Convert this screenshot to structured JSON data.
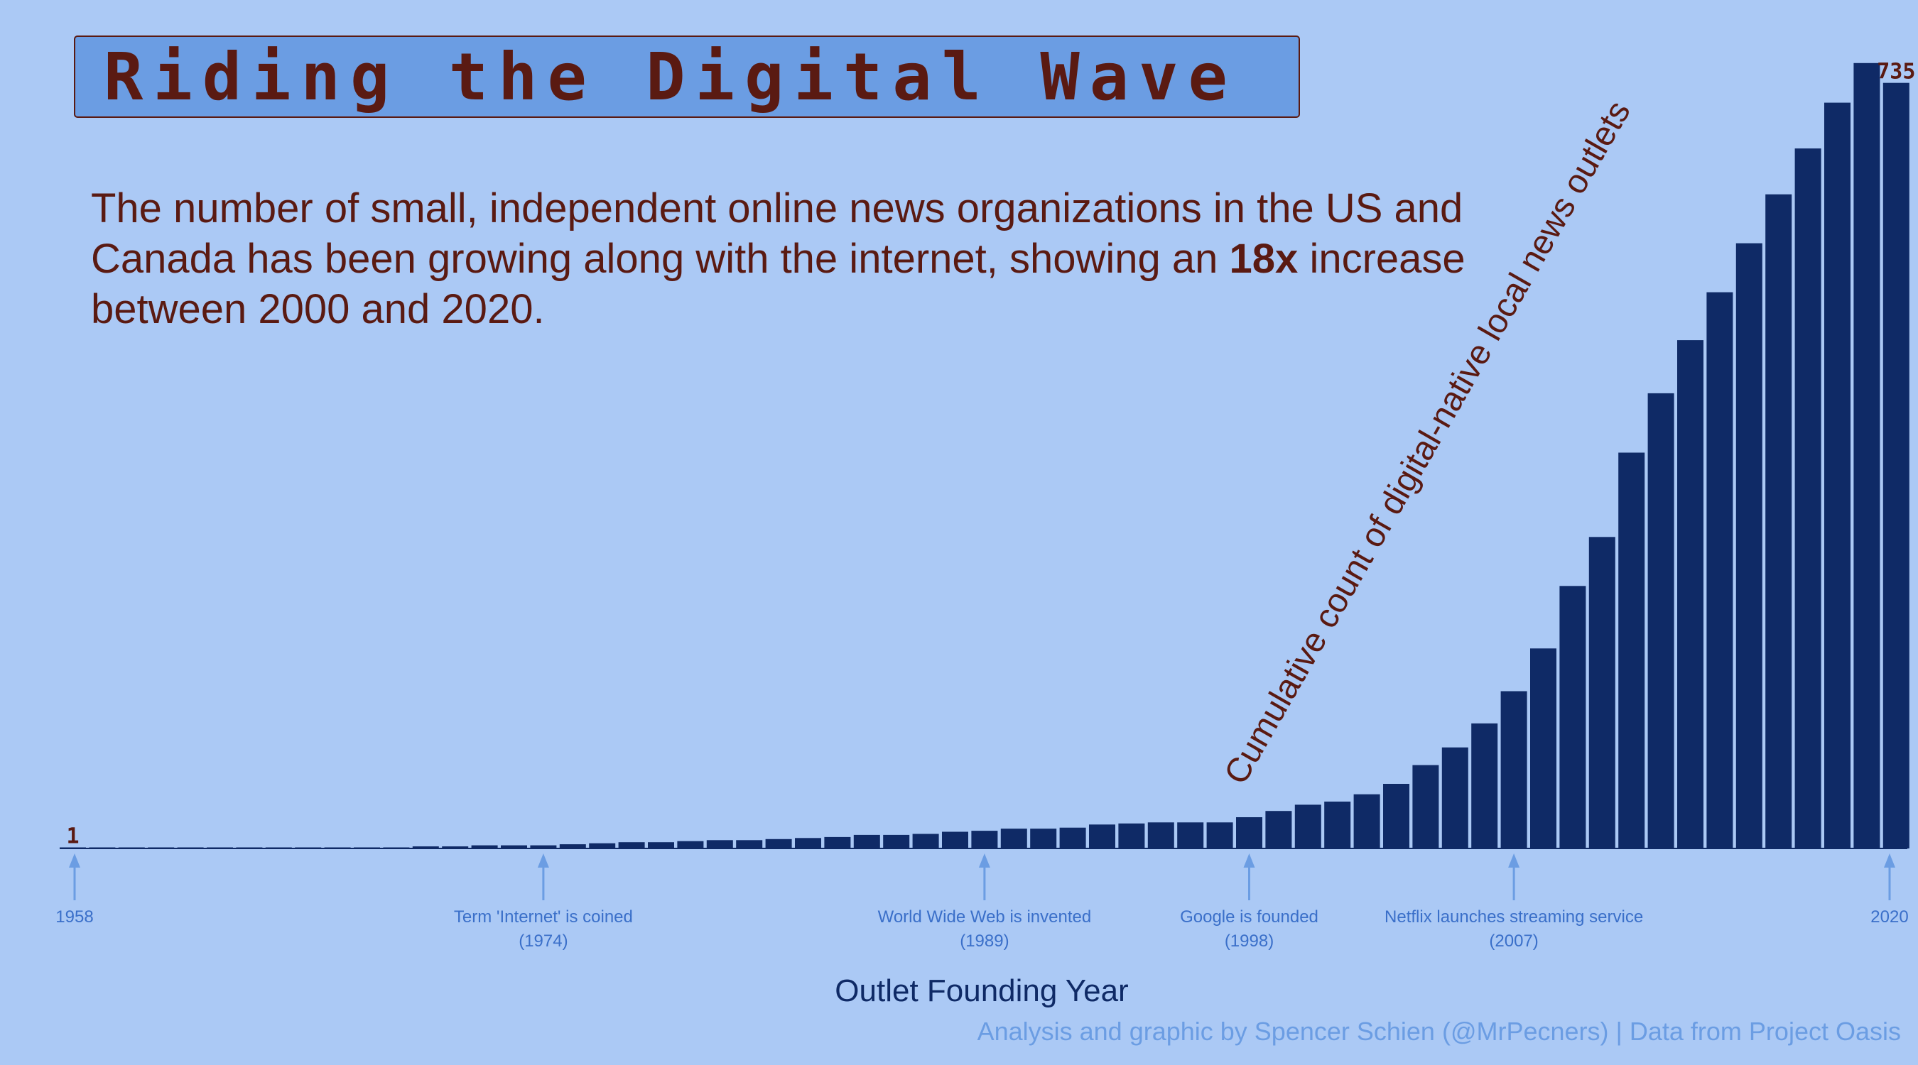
{
  "title": "Riding the Digital Wave",
  "subtitle": {
    "before": "The number of small, independent online news organizations in the US and Canada has been growing along with the internet, showing an ",
    "emphasis": "18x",
    "after": " increase between 2000 and 2020."
  },
  "credit": "Analysis and graphic by Spencer Schien (@MrPecners) | Data from Project Oasis",
  "colors": {
    "background": "#abc9f5",
    "bar": "#0f2a66",
    "accent": "#6b9de3",
    "text": "#5a1a12",
    "annotation": "#3a6fc9"
  },
  "chart_data": {
    "type": "bar",
    "xlabel": "Outlet Founding Year",
    "ylabel": "Cumulative count of digital-native local news outlets",
    "x": [
      1958,
      1959,
      1960,
      1961,
      1962,
      1963,
      1964,
      1965,
      1966,
      1967,
      1968,
      1969,
      1970,
      1971,
      1972,
      1973,
      1974,
      1975,
      1976,
      1977,
      1978,
      1979,
      1980,
      1981,
      1982,
      1983,
      1984,
      1985,
      1986,
      1987,
      1988,
      1989,
      1990,
      1991,
      1992,
      1993,
      1994,
      1995,
      1996,
      1997,
      1998,
      1999,
      2000,
      2001,
      2002,
      2003,
      2004,
      2005,
      2006,
      2007,
      2008,
      2009,
      2010,
      2011,
      2012,
      2013,
      2014,
      2015,
      2016,
      2017,
      2018,
      2019,
      2020
    ],
    "values": [
      1,
      1,
      1,
      1,
      1,
      1,
      1,
      1,
      1,
      1,
      1,
      1,
      2,
      2,
      3,
      3,
      3,
      4,
      5,
      6,
      6,
      7,
      8,
      8,
      9,
      10,
      11,
      13,
      13,
      14,
      16,
      17,
      19,
      19,
      20,
      23,
      24,
      25,
      25,
      25,
      30,
      36,
      42,
      45,
      52,
      62,
      80,
      97,
      120,
      151,
      192,
      252,
      299,
      380,
      437,
      488,
      534,
      581,
      628,
      672,
      716,
      754,
      735
    ],
    "ylim": [
      0,
      760
    ],
    "value_labels": [
      {
        "x": 1958,
        "text": "1"
      },
      {
        "x": 2020,
        "text": "735"
      }
    ],
    "events": [
      {
        "year": 1958,
        "label": "1958",
        "sub": ""
      },
      {
        "year": 1974,
        "label": "Term 'Internet' is coined",
        "sub": "(1974)"
      },
      {
        "year": 1989,
        "label": "World Wide Web is invented",
        "sub": "(1989)"
      },
      {
        "year": 1998,
        "label": "Google is founded",
        "sub": "(1998)"
      },
      {
        "year": 2007,
        "label": "Netflix launches streaming service",
        "sub": "(2007)"
      },
      {
        "year": 2020,
        "label": "2020",
        "sub": ""
      }
    ],
    "grid": false,
    "legend": "none"
  }
}
